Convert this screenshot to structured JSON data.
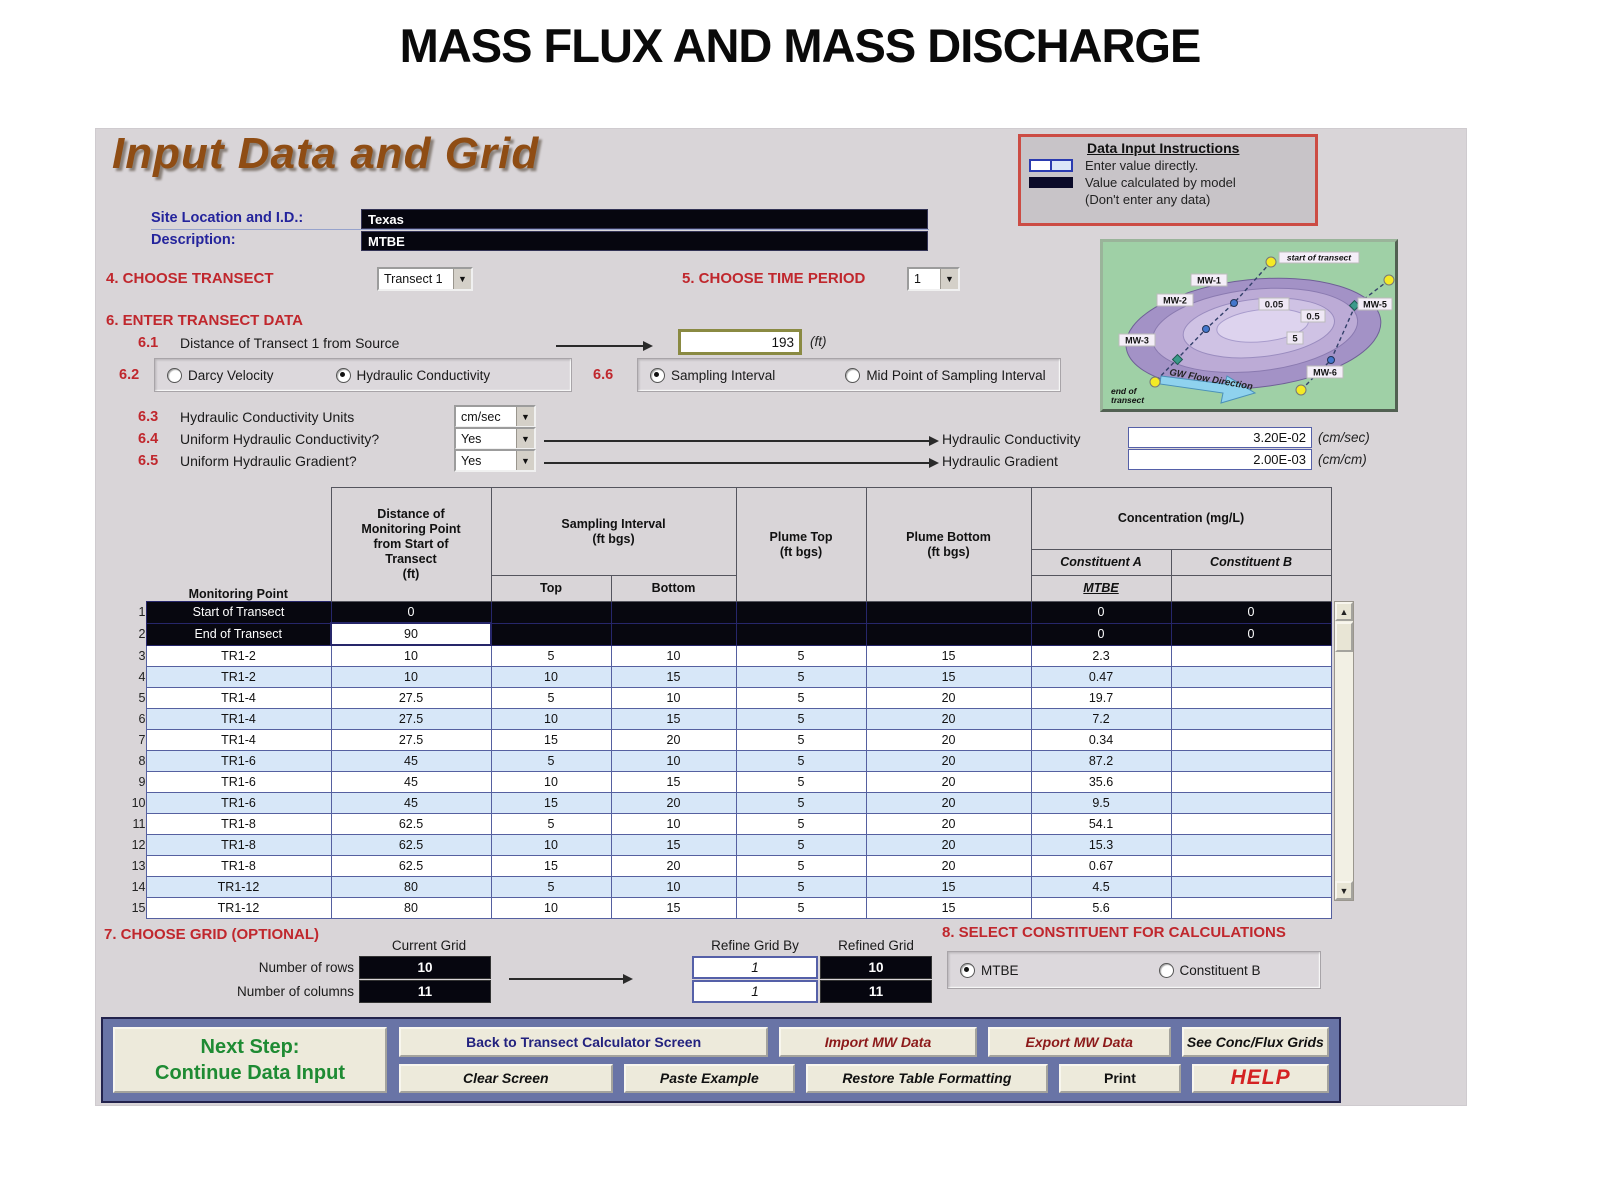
{
  "page_title": "MASS FLUX AND MASS DISCHARGE",
  "panel_heading": "Input Data and Grid",
  "instructions": {
    "title": "Data Input Instructions",
    "enter_label": "Enter value directly.",
    "calc_label": "Value calculated by model",
    "calc_label2": "(Don't enter any data)"
  },
  "site": {
    "id_label": "Site Location and I.D.:",
    "id_value": "Texas",
    "desc_label": "Description:",
    "desc_value": "MTBE"
  },
  "s4": {
    "label": "4. CHOOSE TRANSECT",
    "value": "Transect 1"
  },
  "s5": {
    "label": "5. CHOOSE TIME PERIOD",
    "value": "1"
  },
  "s6": {
    "label": "6. ENTER TRANSECT DATA",
    "s61": {
      "num": "6.1",
      "label": "Distance of Transect 1 from Source",
      "value": "193",
      "unit": "(ft)"
    },
    "s62": {
      "num": "6.2",
      "option1": "Darcy Velocity",
      "option2": "Hydraulic Conductivity"
    },
    "s66": {
      "num": "6.6",
      "option1": "Sampling Interval",
      "option2": "Mid Point of Sampling Interval"
    },
    "s63": {
      "num": "6.3",
      "label": "Hydraulic Conductivity Units",
      "value": "cm/sec"
    },
    "s64": {
      "num": "6.4",
      "label": "Uniform Hydraulic Conductivity?",
      "value": "Yes",
      "result_label": "Hydraulic Conductivity",
      "result_value": "3.20E-02",
      "result_unit": "(cm/sec)"
    },
    "s65": {
      "num": "6.5",
      "label": "Uniform Hydraulic Gradient?",
      "value": "Yes",
      "result_label": "Hydraulic Gradient",
      "result_value": "2.00E-03",
      "result_unit": "(cm/cm)"
    }
  },
  "map": {
    "start_label": "start of transect",
    "end_label_line1": "end of",
    "end_label_line2": "transect",
    "flow_label": "GW Flow Direction",
    "wells": [
      "MW-1",
      "MW-2",
      "MW-3",
      "MW-5",
      "MW-6"
    ],
    "contours": [
      "0.05",
      "0.5",
      "5"
    ]
  },
  "table": {
    "headers": {
      "monitoring_point": "Monitoring Point",
      "distance": "Distance of\nMonitoring Point\nfrom Start of\nTransect\n(ft)",
      "sampling": "Sampling Interval\n(ft bgs)",
      "top": "Top",
      "bottom": "Bottom",
      "plume_top": "Plume Top\n(ft bgs)",
      "plume_bottom": "Plume Bottom\n(ft bgs)",
      "concentration": "Concentration (mg/L)",
      "const_a": "Constituent A",
      "const_b": "Constituent B",
      "const_a_name": "MTBE",
      "const_b_name": ""
    },
    "rows": [
      {
        "n": "1",
        "mp": "Start of Transect",
        "dist": "0",
        "top": "",
        "bottom": "",
        "ptop": "",
        "pbottom": "",
        "ca": "0",
        "cb": "0",
        "calc": true
      },
      {
        "n": "2",
        "mp": "End of Transect",
        "dist": "90",
        "top": "",
        "bottom": "",
        "ptop": "",
        "pbottom": "",
        "ca": "0",
        "cb": "0",
        "calc": true,
        "dist_white": true
      },
      {
        "n": "3",
        "mp": "TR1-2",
        "dist": "10",
        "top": "5",
        "bottom": "10",
        "ptop": "5",
        "pbottom": "15",
        "ca": "2.3",
        "cb": ""
      },
      {
        "n": "4",
        "mp": "TR1-2",
        "dist": "10",
        "top": "10",
        "bottom": "15",
        "ptop": "5",
        "pbottom": "15",
        "ca": "0.47",
        "cb": ""
      },
      {
        "n": "5",
        "mp": "TR1-4",
        "dist": "27.5",
        "top": "5",
        "bottom": "10",
        "ptop": "5",
        "pbottom": "20",
        "ca": "19.7",
        "cb": ""
      },
      {
        "n": "6",
        "mp": "TR1-4",
        "dist": "27.5",
        "top": "10",
        "bottom": "15",
        "ptop": "5",
        "pbottom": "20",
        "ca": "7.2",
        "cb": ""
      },
      {
        "n": "7",
        "mp": "TR1-4",
        "dist": "27.5",
        "top": "15",
        "bottom": "20",
        "ptop": "5",
        "pbottom": "20",
        "ca": "0.34",
        "cb": ""
      },
      {
        "n": "8",
        "mp": "TR1-6",
        "dist": "45",
        "top": "5",
        "bottom": "10",
        "ptop": "5",
        "pbottom": "20",
        "ca": "87.2",
        "cb": ""
      },
      {
        "n": "9",
        "mp": "TR1-6",
        "dist": "45",
        "top": "10",
        "bottom": "15",
        "ptop": "5",
        "pbottom": "20",
        "ca": "35.6",
        "cb": ""
      },
      {
        "n": "10",
        "mp": "TR1-6",
        "dist": "45",
        "top": "15",
        "bottom": "20",
        "ptop": "5",
        "pbottom": "20",
        "ca": "9.5",
        "cb": ""
      },
      {
        "n": "11",
        "mp": "TR1-8",
        "dist": "62.5",
        "top": "5",
        "bottom": "10",
        "ptop": "5",
        "pbottom": "20",
        "ca": "54.1",
        "cb": ""
      },
      {
        "n": "12",
        "mp": "TR1-8",
        "dist": "62.5",
        "top": "10",
        "bottom": "15",
        "ptop": "5",
        "pbottom": "20",
        "ca": "15.3",
        "cb": ""
      },
      {
        "n": "13",
        "mp": "TR1-8",
        "dist": "62.5",
        "top": "15",
        "bottom": "20",
        "ptop": "5",
        "pbottom": "20",
        "ca": "0.67",
        "cb": ""
      },
      {
        "n": "14",
        "mp": "TR1-12",
        "dist": "80",
        "top": "5",
        "bottom": "10",
        "ptop": "5",
        "pbottom": "15",
        "ca": "4.5",
        "cb": ""
      },
      {
        "n": "15",
        "mp": "TR1-12",
        "dist": "80",
        "top": "10",
        "bottom": "15",
        "ptop": "5",
        "pbottom": "15",
        "ca": "5.6",
        "cb": ""
      }
    ]
  },
  "s7": {
    "heading": "7. CHOOSE GRID (OPTIONAL)",
    "current_grid": "Current Grid",
    "rows_label": "Number of rows",
    "cols_label": "Number of columns",
    "rows_value": "10",
    "cols_value": "11",
    "refine_label": "Refine Grid By",
    "refined_label": "Refined Grid",
    "refine_rows": "1",
    "refine_cols": "1",
    "refined_rows": "10",
    "refined_cols": "11"
  },
  "s8": {
    "heading": "8. SELECT CONSTITUENT FOR CALCULATIONS",
    "option1": "MTBE",
    "option2": "Constituent B"
  },
  "footer": {
    "next_line1": "Next Step:",
    "next_line2": "Continue Data Input",
    "back": "Back to Transect Calculator Screen",
    "import": "Import MW Data",
    "export": "Export MW Data",
    "see_grids": "See Conc/Flux Grids",
    "clear": "Clear Screen",
    "paste": "Paste Example",
    "restore": "Restore Table Formatting",
    "print": "Print",
    "help": "HELP"
  }
}
